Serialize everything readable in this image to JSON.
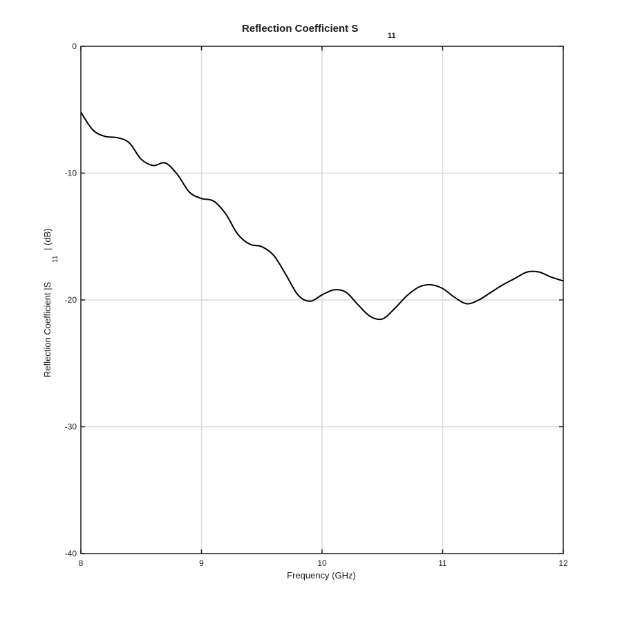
{
  "chart_data": {
    "type": "line",
    "title": "Reflection Coefficient S",
    "title_subscript": "11",
    "xlabel": "Frequency (GHz)",
    "ylabel_prefix": "Reflection Coefficient |S",
    "ylabel_subscript": "11",
    "ylabel_suffix": "| (dB)",
    "xlim": [
      8,
      12
    ],
    "ylim": [
      -40,
      0
    ],
    "x_ticks": [
      8,
      9,
      10,
      11,
      12
    ],
    "y_ticks": [
      0,
      -10,
      -20,
      -30,
      -40
    ],
    "grid": true,
    "line_color": "#000000",
    "grid_color": "#d9d9d9",
    "series": [
      {
        "x": [
          8.0,
          8.1,
          8.2,
          8.3,
          8.4,
          8.5,
          8.6,
          8.7,
          8.8,
          8.9,
          9.0,
          9.1,
          9.2,
          9.3,
          9.4,
          9.5,
          9.6,
          9.7,
          9.8,
          9.9,
          10.0,
          10.1,
          10.2,
          10.3,
          10.4,
          10.5,
          10.6,
          10.7,
          10.8,
          10.9,
          11.0,
          11.1,
          11.2,
          11.3,
          11.4,
          11.5,
          11.6,
          11.7,
          11.8,
          11.9,
          12.0
        ],
        "y": [
          -5.2,
          -6.6,
          -7.1,
          -7.2,
          -7.6,
          -8.9,
          -9.4,
          -9.2,
          -10.1,
          -11.5,
          -12.0,
          -12.2,
          -13.2,
          -14.8,
          -15.6,
          -15.8,
          -16.5,
          -18.0,
          -19.6,
          -20.1,
          -19.6,
          -19.2,
          -19.4,
          -20.4,
          -21.3,
          -21.5,
          -20.7,
          -19.7,
          -19.0,
          -18.8,
          -19.1,
          -19.8,
          -20.3,
          -20.0,
          -19.4,
          -18.8,
          -18.3,
          -17.8,
          -17.8,
          -18.2,
          -18.5
        ]
      }
    ]
  }
}
